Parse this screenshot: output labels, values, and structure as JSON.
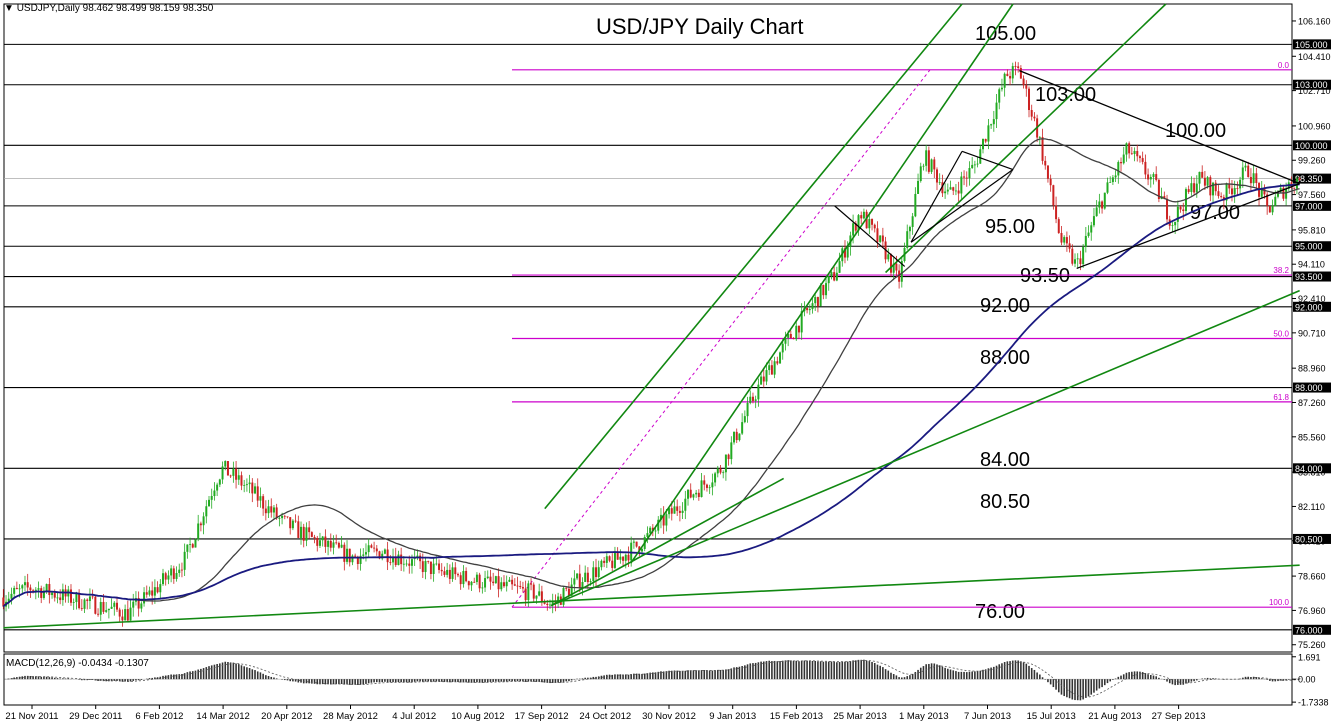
{
  "header": {
    "symbol": "USDJPY,Daily",
    "ohlc": "98.462 98.499 98.159 98.350"
  },
  "chart_data": {
    "type": "candlestick",
    "title": "USD/JPY Daily Chart",
    "ylim": [
      74.9,
      107.0
    ],
    "y_ticks": [
      "106.160",
      "104.410",
      "102.710",
      "100.960",
      "99.260",
      "97.560",
      "95.810",
      "94.110",
      "92.410",
      "90.710",
      "88.960",
      "87.260",
      "85.560",
      "83.810",
      "82.110",
      "80.410",
      "78.660",
      "76.960",
      "75.260"
    ],
    "x_ticks": [
      "21 Nov 2011",
      "29 Dec 2011",
      "6 Feb 2012",
      "14 Mar 2012",
      "20 Apr 2012",
      "28 May 2012",
      "4 Jul 2012",
      "10 Aug 2012",
      "17 Sep 2012",
      "24 Oct 2012",
      "30 Nov 2012",
      "9 Jan 2013",
      "15 Feb 2013",
      "25 Mar 2013",
      "1 May 2013",
      "7 Jun 2013",
      "15 Jul 2013",
      "21 Aug 2013",
      "27 Sep 2013"
    ],
    "horizontal_levels": [
      {
        "value": 105.0,
        "label": "105.00",
        "tag": "105.000"
      },
      {
        "value": 103.0,
        "label": "103.00",
        "tag": "103.000"
      },
      {
        "value": 100.0,
        "label": "100.00",
        "tag": "100.000"
      },
      {
        "value": 97.0,
        "label": "97.00",
        "tag": "97.000"
      },
      {
        "value": 95.0,
        "label": "95.00",
        "tag": "95.000"
      },
      {
        "value": 93.5,
        "label": "93.50",
        "tag": "93.500"
      },
      {
        "value": 92.0,
        "label": "92.00",
        "tag": "92.000"
      },
      {
        "value": 88.0,
        "label": "88.00",
        "tag": "88.000"
      },
      {
        "value": 84.0,
        "label": "84.00",
        "tag": "84.000"
      },
      {
        "value": 80.5,
        "label": "80.50",
        "tag": "80.500"
      },
      {
        "value": 76.0,
        "label": "76.00",
        "tag": "76.000"
      }
    ],
    "current_price": {
      "value": 98.35,
      "tag": "98.350"
    },
    "fibonacci": {
      "low": 77.12,
      "high": 103.74,
      "levels": [
        {
          "ratio": 0.0,
          "label": "0.0"
        },
        {
          "ratio": 0.382,
          "label": "38.2"
        },
        {
          "ratio": 0.5,
          "label": "50.0"
        },
        {
          "ratio": 0.618,
          "label": "61.8"
        },
        {
          "ratio": 1.0,
          "label": "100.0"
        }
      ]
    },
    "colors": {
      "up": "#22aa22",
      "down": "#cc2222",
      "fib": "#cc00cc",
      "channel": "#118811",
      "ma_fast": "#404040",
      "ma_slow": "#1a1a80",
      "level": "#000000"
    },
    "macd": {
      "label": "MACD(12,26,9) -0.0434 -0.1307",
      "ticks": [
        "1.691",
        "0.00",
        "-1.7338"
      ],
      "ylim": [
        -1.95,
        1.9
      ]
    }
  }
}
